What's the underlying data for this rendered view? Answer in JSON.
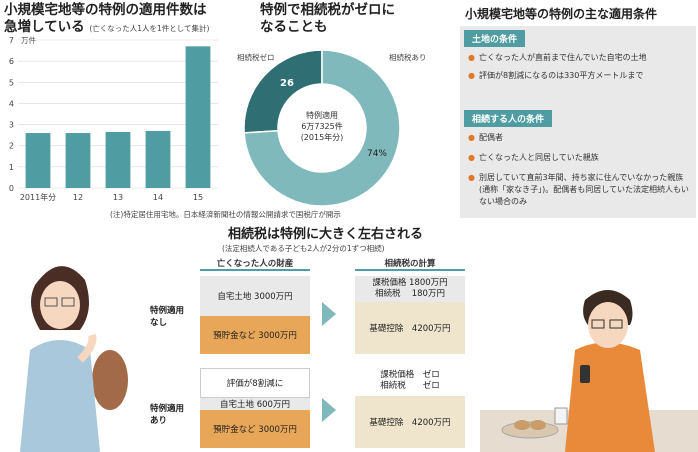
{
  "left_chart": {
    "title_line1": "小規模宅地等の特例の適用件数は",
    "title_line2": "急増している",
    "title_note": "(亡くなった人1人を1件として集計)",
    "unit": "万件",
    "note": "(注)特定居住用宅地。日本経済新聞社の情報公開請求で国税庁が開示"
  },
  "pie": {
    "title_line1": "特例で相続税がゼロに",
    "title_line2": "なることも",
    "label_zero": "相続税ゼロ",
    "label_yes": "相続税あり",
    "pct_zero": "26",
    "pct_yes": "74%",
    "center1": "特例適用",
    "center2": "6万7325件",
    "center3": "(2015年分)"
  },
  "conditions": {
    "title": "小規模宅地等の特例の主な適用条件",
    "land_head": "土地の条件",
    "land_items": [
      "亡くなった人が直前まで住んでいた自宅の土地",
      "評価が8割減になるのは330平方メートルまで"
    ],
    "heir_head": "相続する人の条件",
    "heir_items": [
      "配偶者",
      "亡くなった人と同居していた親族",
      "別居していて直前3年間、持ち家に住んでいなかった親族(通称「家なき子」)。配偶者も同居していた法定相続人もいない場合のみ"
    ]
  },
  "lower": {
    "title": "相続税は特例に大きく左右される",
    "subtitle": "(法定相続人である子ども2人が2分の1ずつ相続)",
    "col1_head": "亡くなった人の財産",
    "col2_head": "相続税の計算",
    "row1_label": "特例適用\nなし",
    "row2_label": "特例適用\nあり",
    "r1_home": "自宅土地 3000万円",
    "r1_savings": "預貯金など 3000万円",
    "r1_calc1": "課税価格 1800万円",
    "r1_calc2": "相続税　 180万円",
    "r1_basic": "基礎控除　4200万円",
    "r2_note": "評価が8割減に",
    "r2_home": "自宅土地 600万円",
    "r2_savings": "預貯金など 3000万円",
    "r2_calc1": "課税価格　ゼロ",
    "r2_calc2": "相続税　　ゼロ",
    "r2_basic": "基礎控除　4200万円"
  },
  "colors": {
    "teal": "#4f9da2",
    "dark_teal": "#2f6f74",
    "light_teal": "#7fb9bb",
    "orange": "#e8a758",
    "grey": "#e9e9e9",
    "beige": "#efe4cc"
  },
  "chart_data": {
    "type": "bar",
    "categories": [
      "2011年分",
      "12",
      "13",
      "14",
      "15"
    ],
    "values": [
      2.6,
      2.6,
      2.65,
      2.7,
      6.7
    ],
    "ylabel": "万件",
    "ylim": [
      0,
      7
    ],
    "yticks": [
      "0",
      "1",
      "2",
      "3",
      "4",
      "5",
      "6",
      "7"
    ],
    "pie": {
      "slices": [
        {
          "name": "相続税ゼロ",
          "value": 26
        },
        {
          "name": "相続税あり",
          "value": 74
        }
      ]
    }
  }
}
